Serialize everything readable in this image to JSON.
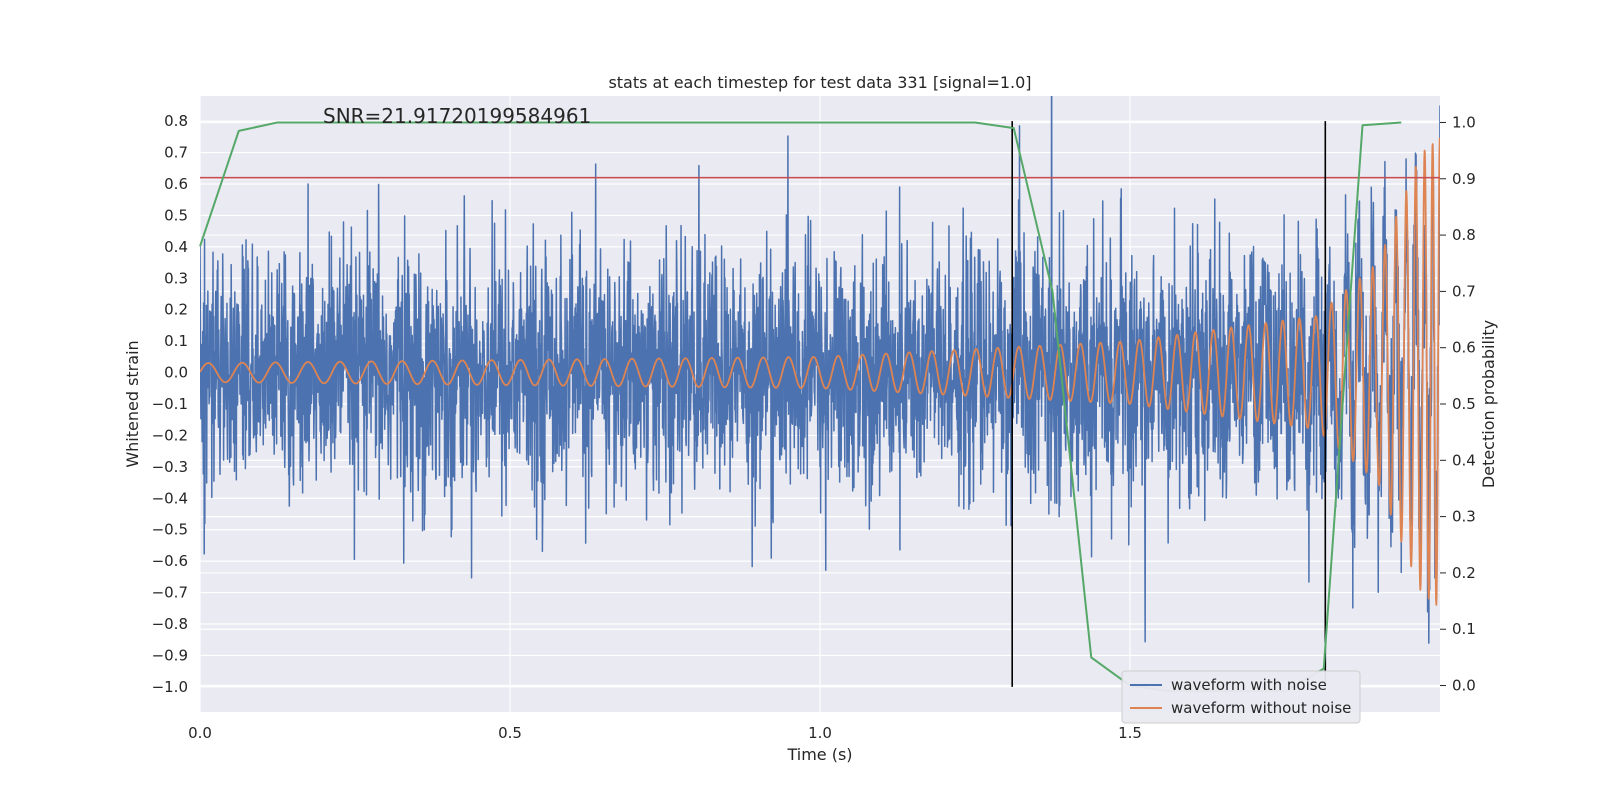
{
  "chart_data": {
    "type": "line",
    "title": "stats at each timestep for test data 331 [signal=1.0]",
    "xlabel": "Time (s)",
    "ylabel_left": "Whitened strain",
    "ylabel_right": "Detection probability",
    "annotation": "SNR=21.91720199584961",
    "xlim": [
      0,
      2.0
    ],
    "ylim_left": [
      -1.08,
      0.88
    ],
    "ylim_right": [
      -0.047,
      1.047
    ],
    "x_ticks": [
      0.0,
      0.5,
      1.0,
      1.5
    ],
    "x_tick_labels": [
      "0.0",
      "0.5",
      "1.0",
      "1.5"
    ],
    "y_ticks_left": [
      0.8,
      0.7,
      0.6,
      0.5,
      0.4,
      0.3,
      0.2,
      0.1,
      0.0,
      -0.1,
      -0.2,
      -0.3,
      -0.4,
      -0.5,
      -0.6,
      -0.7,
      -0.8,
      -0.9,
      -1.0
    ],
    "y_tick_labels_left": [
      "0.8",
      "0.7",
      "0.6",
      "0.5",
      "0.4",
      "0.3",
      "0.2",
      "0.1",
      "0.0",
      "−0.1",
      "−0.2",
      "−0.3",
      "−0.4",
      "−0.5",
      "−0.6",
      "−0.7",
      "−0.8",
      "−0.9",
      "−1.0"
    ],
    "y_ticks_right": [
      1.0,
      0.9,
      0.8,
      0.7,
      0.6,
      0.5,
      0.4,
      0.3,
      0.2,
      0.1,
      0.0
    ],
    "y_tick_labels_right": [
      "1.0",
      "0.9",
      "0.8",
      "0.7",
      "0.6",
      "0.5",
      "0.4",
      "0.3",
      "0.2",
      "0.1",
      "0.0"
    ],
    "grid": true,
    "legend": {
      "placement": "lower-right",
      "entries": [
        {
          "label": "waveform with noise",
          "color": "#4c72b0"
        },
        {
          "label": "waveform without noise",
          "color": "#dd8452"
        }
      ]
    },
    "threshold_line": {
      "axis": "left",
      "y": 0.62,
      "color": "#c44e52"
    },
    "vertical_markers": {
      "x": [
        1.31,
        1.815
      ],
      "ymin": -1.0,
      "ymax": 0.8,
      "color": "#000000"
    },
    "series": [
      {
        "name": "waveform with noise",
        "axis": "left",
        "color": "#4c72b0",
        "kind": "noise",
        "sampling_hz": 2048,
        "noise_std": 0.19,
        "x_range": [
          0,
          2.0
        ]
      },
      {
        "name": "waveform without noise",
        "axis": "left",
        "color": "#dd8452",
        "kind": "chirp",
        "x_range": [
          0,
          2.0
        ],
        "chirp_points": [
          {
            "t": 0.0,
            "amp": 0.03,
            "freq_hz": 18
          },
          {
            "t": 1.0,
            "amp": 0.05,
            "freq_hz": 25
          },
          {
            "t": 1.5,
            "amp": 0.1,
            "freq_hz": 32
          },
          {
            "t": 1.8,
            "amp": 0.18,
            "freq_hz": 38
          },
          {
            "t": 1.9,
            "amp": 0.35,
            "freq_hz": 50
          },
          {
            "t": 1.97,
            "amp": 0.7,
            "freq_hz": 70
          },
          {
            "t": 2.0,
            "amp": 0.75,
            "freq_hz": 90
          }
        ]
      },
      {
        "name": "detection probability",
        "axis": "right",
        "color": "#55a868",
        "x": [
          0.0,
          0.0625,
          0.125,
          0.25,
          0.5,
          0.75,
          1.0,
          1.25,
          1.3125,
          1.375,
          1.4375,
          1.5,
          1.5625,
          1.625,
          1.6875,
          1.75,
          1.8125,
          1.875,
          1.9375
        ],
        "y": [
          0.78,
          0.985,
          1.0,
          1.0,
          1.0,
          1.0,
          1.0,
          1.0,
          0.99,
          0.7,
          0.05,
          0.0,
          -0.01,
          -0.01,
          -0.01,
          -0.01,
          0.03,
          0.995,
          1.0
        ]
      }
    ]
  }
}
